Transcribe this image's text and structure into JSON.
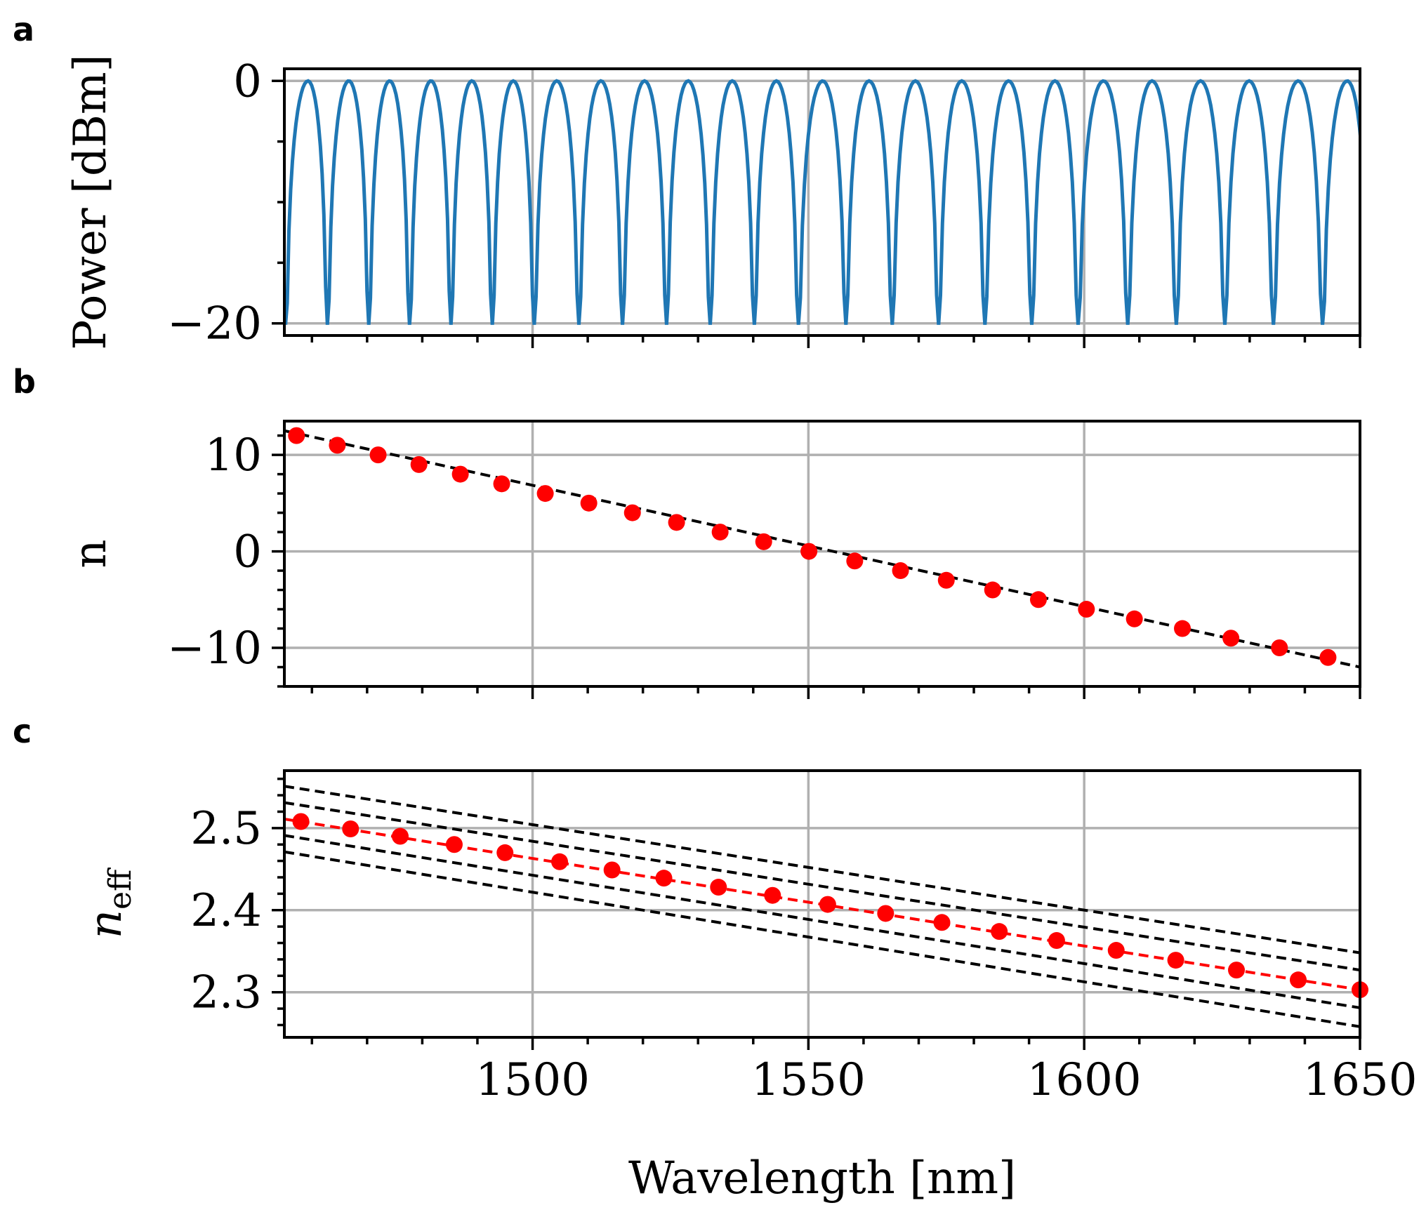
{
  "panel_letters": {
    "a": "a",
    "b": "b",
    "c": "c"
  },
  "xlabel": "Wavelength [nm]",
  "colors": {
    "spectrum": "#1f77b4",
    "points": "#ff0000",
    "fit": "#000000",
    "grid": "#b0b0b0"
  },
  "chart_data": [
    {
      "panel": "a",
      "type": "line",
      "ylabel": "Power [dBm]",
      "xlim": [
        1455,
        1650
      ],
      "ylim": [
        -21,
        1
      ],
      "yticks": [
        0,
        -20
      ],
      "ytick_labels": [
        "0",
        "−20"
      ],
      "xticks": [
        1500,
        1550,
        1600,
        1650
      ],
      "xtick_labels": [],
      "grid": true,
      "series": [
        {
          "style": "solid-blue",
          "peak_wavelengths": [
            1459.3,
            1466.7,
            1474.1,
            1481.6,
            1489.0,
            1496.5,
            1504.4,
            1512.4,
            1520.3,
            1528.2,
            1536.2,
            1544.2,
            1552.6,
            1561.0,
            1569.4,
            1577.8,
            1586.3,
            1594.7,
            1603.5,
            1612.3,
            1621.1,
            1629.9,
            1638.8,
            1647.7
          ],
          "dip_wavelengths": [
            1455.2,
            1462.8,
            1470.3,
            1477.7,
            1485.2,
            1492.7,
            1500.3,
            1508.4,
            1516.3,
            1524.3,
            1532.2,
            1540.2,
            1548.2,
            1556.8,
            1565.2,
            1573.6,
            1582.0,
            1590.5,
            1598.9,
            1607.9,
            1616.7,
            1625.5,
            1634.3,
            1643.2
          ],
          "peak_power_dBm": 0,
          "dip_power_dBm": -20
        }
      ]
    },
    {
      "panel": "b",
      "type": "scatter",
      "ylabel": "n",
      "xlim": [
        1455,
        1650
      ],
      "ylim": [
        -14,
        13.5
      ],
      "yticks": [
        10,
        0,
        -10
      ],
      "ytick_labels": [
        "10",
        "0",
        "−10"
      ],
      "xticks": [
        1500,
        1550,
        1600,
        1650
      ],
      "xtick_labels": [],
      "grid": true,
      "series": [
        {
          "style": "red-dots",
          "x": [
            1457.2,
            1464.6,
            1472.0,
            1479.4,
            1486.9,
            1494.4,
            1502.3,
            1510.2,
            1518.1,
            1526.1,
            1534.0,
            1541.9,
            1550.1,
            1558.4,
            1566.7,
            1575.0,
            1583.4,
            1591.7,
            1600.4,
            1609.1,
            1617.8,
            1626.6,
            1635.4,
            1644.2
          ],
          "y": [
            12,
            11,
            10,
            9,
            8,
            7,
            6,
            5,
            4,
            3,
            2,
            1,
            0,
            -1,
            -2,
            -3,
            -4,
            -5,
            -6,
            -7,
            -8,
            -9,
            -10,
            -11
          ]
        },
        {
          "style": "black-dashed-fit",
          "x": [
            1455,
            1650
          ],
          "y": [
            12.5,
            -12.0
          ]
        }
      ]
    },
    {
      "panel": "c",
      "type": "scatter",
      "ylabel": "n_eff",
      "ylabel_main": "n",
      "ylabel_sub": "eff",
      "xlim": [
        1455,
        1650
      ],
      "ylim": [
        2.245,
        2.57
      ],
      "yticks": [
        2.5,
        2.4,
        2.3
      ],
      "ytick_labels": [
        "2.5",
        "2.4",
        "2.3"
      ],
      "xticks": [
        1500,
        1550,
        1600,
        1650
      ],
      "xtick_labels": [
        "1500",
        "1550",
        "1600",
        "1650"
      ],
      "grid": true,
      "series": [
        {
          "style": "red-dots",
          "x": [
            1458.0,
            1467.0,
            1476.0,
            1485.8,
            1495.0,
            1504.9,
            1514.4,
            1523.8,
            1533.7,
            1543.5,
            1553.5,
            1564.0,
            1574.2,
            1584.6,
            1595.0,
            1605.8,
            1616.6,
            1627.6,
            1638.8,
            1650.0
          ],
          "y": [
            2.508,
            2.499,
            2.49,
            2.48,
            2.47,
            2.459,
            2.449,
            2.439,
            2.428,
            2.418,
            2.407,
            2.396,
            2.385,
            2.374,
            2.363,
            2.351,
            2.339,
            2.327,
            2.315,
            2.303
          ]
        },
        {
          "style": "red-dashed-fit",
          "x": [
            1455,
            1650
          ],
          "y": [
            2.511,
            2.303
          ]
        },
        {
          "style": "black-dashed",
          "lines": [
            {
              "x": [
                1455,
                1650
              ],
              "y": [
                2.551,
                2.348
              ]
            },
            {
              "x": [
                1455,
                1650
              ],
              "y": [
                2.531,
                2.327
              ]
            },
            {
              "x": [
                1455,
                1650
              ],
              "y": [
                2.491,
                2.281
              ]
            },
            {
              "x": [
                1455,
                1650
              ],
              "y": [
                2.471,
                2.258
              ]
            }
          ]
        }
      ]
    }
  ]
}
